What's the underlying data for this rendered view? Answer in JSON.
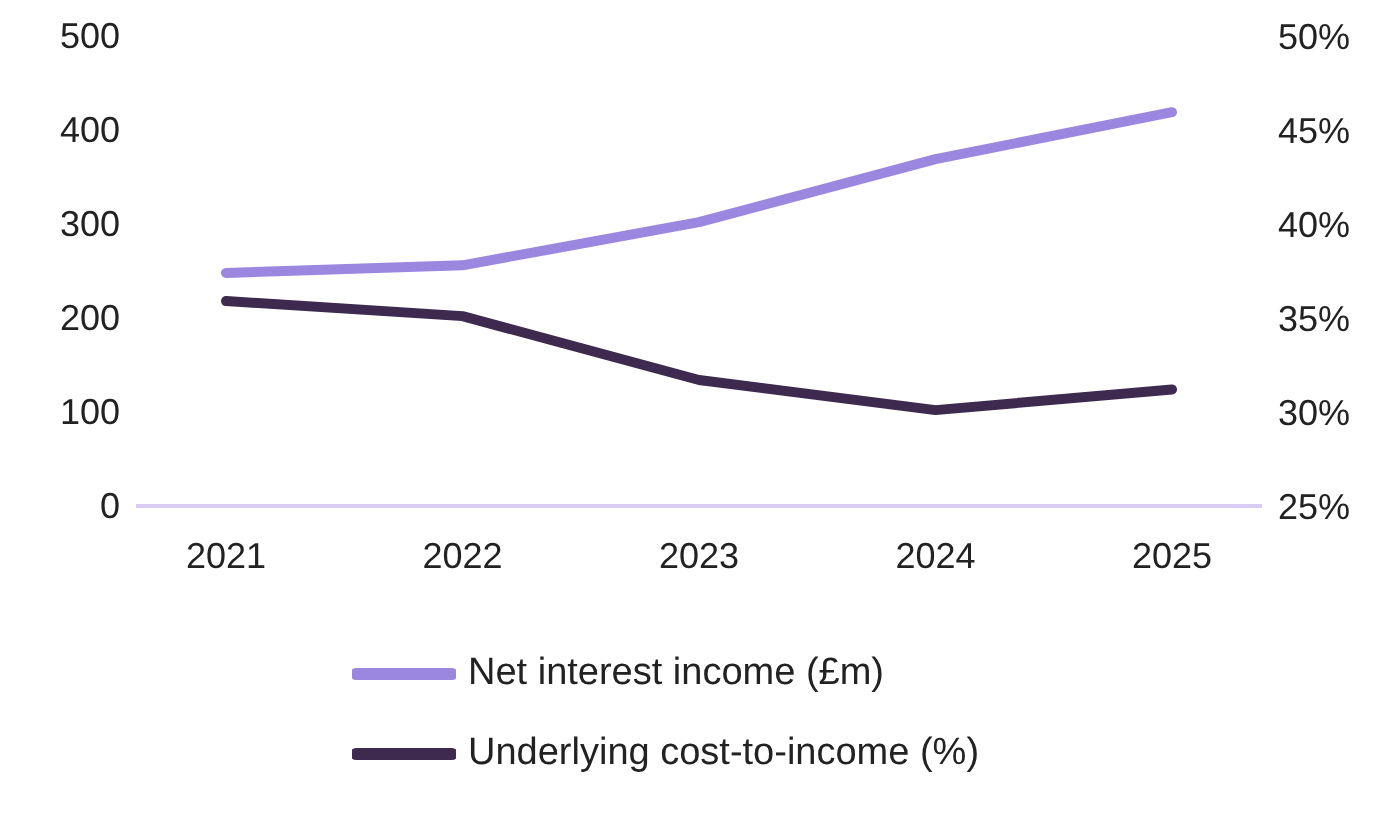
{
  "chart_data": {
    "type": "line",
    "categories": [
      "2021",
      "2022",
      "2023",
      "2024",
      "2025"
    ],
    "series": [
      {
        "name": "Net interest income (£m)",
        "color": "#9b87e0",
        "values": [
          248,
          256,
          302,
          369,
          419
        ]
      },
      {
        "name": "Underlying cost-to-income (%)",
        "color": "#3d2a4e",
        "values": [
          35.9,
          35.1,
          31.7,
          30.1,
          31.2
        ],
        "axis": "y2"
      }
    ],
    "ylim": [
      0,
      500
    ],
    "yticks": [
      0,
      100,
      200,
      300,
      400,
      500
    ],
    "y2lim": [
      25,
      50
    ],
    "y2ticks": [
      {
        "value": 25,
        "label": "25%"
      },
      {
        "value": 30,
        "label": "30%"
      },
      {
        "value": 35,
        "label": "35%"
      },
      {
        "value": 40,
        "label": "40%"
      },
      {
        "value": 45,
        "label": "45%"
      },
      {
        "value": 50,
        "label": "50%"
      }
    ],
    "grid": false,
    "legend": "bottom",
    "marker": "none",
    "line_style": "solid"
  }
}
